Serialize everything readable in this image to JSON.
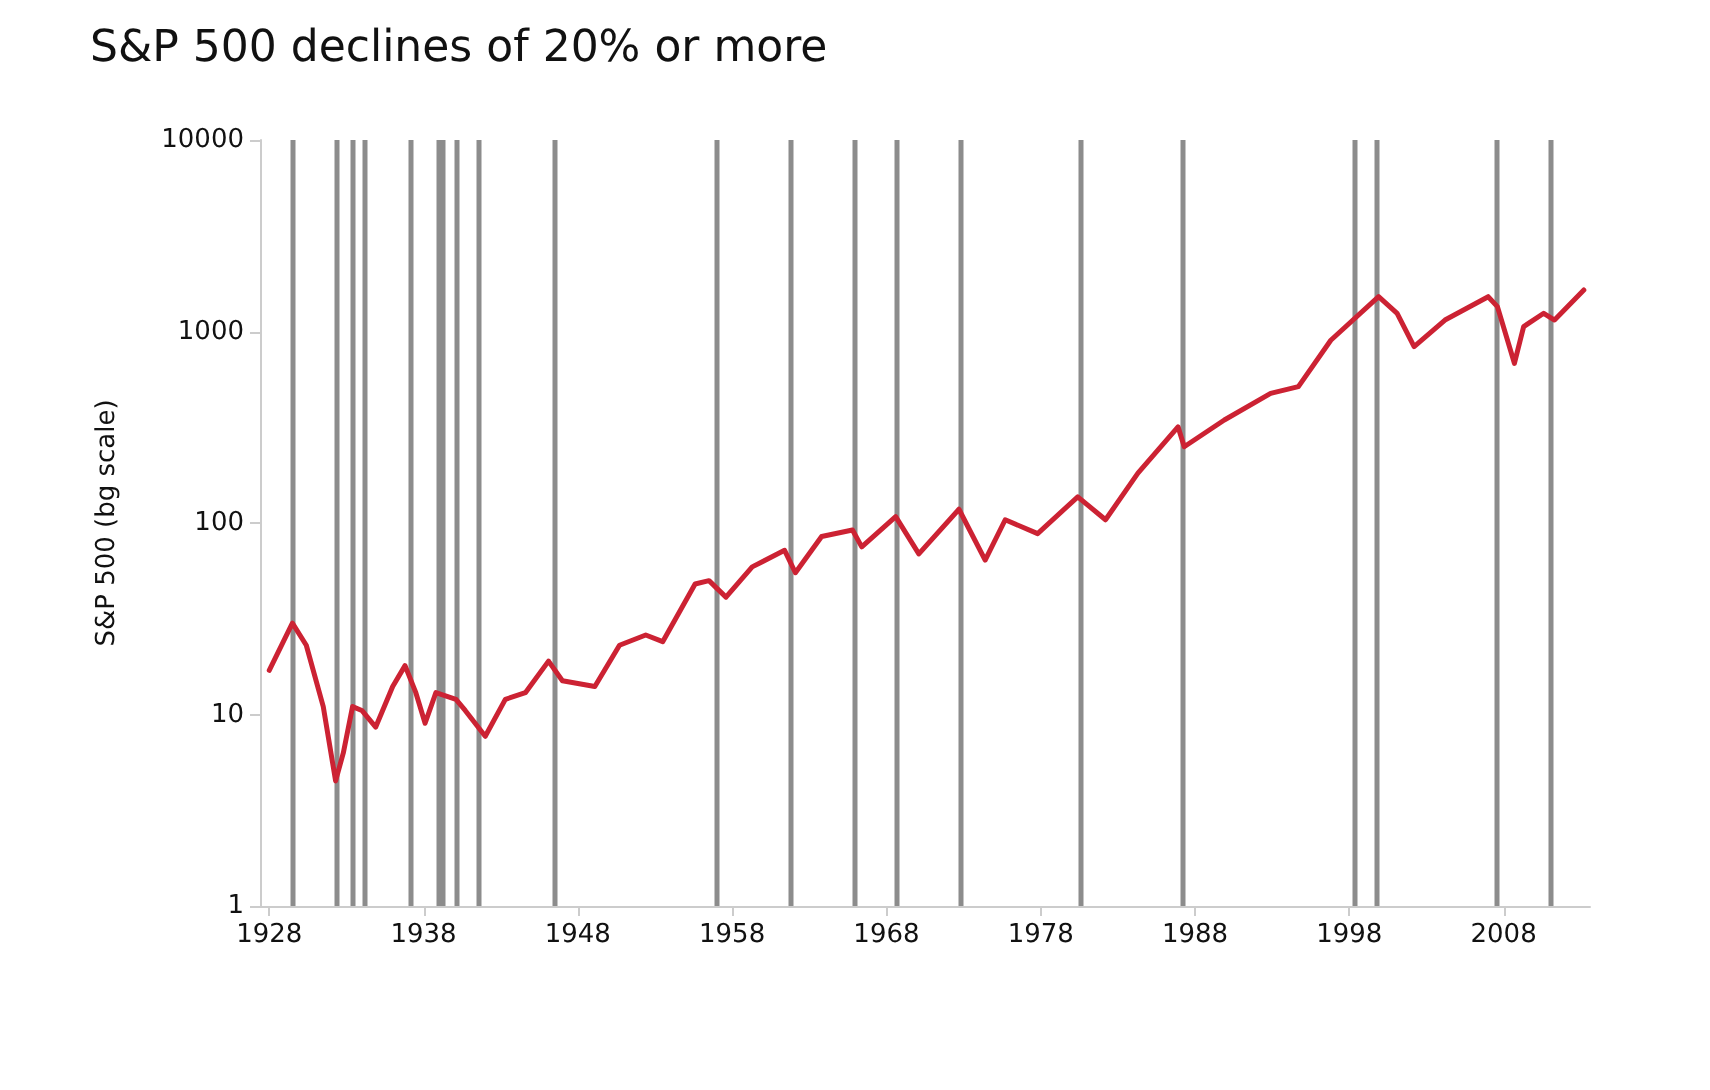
{
  "chart_data": {
    "type": "line",
    "title": "S&P 500 declines of 20% or more",
    "ylabel": "S&P 500 (bg scale)",
    "log": "y",
    "ylim": [
      1,
      10000
    ],
    "yticks": [
      1,
      10,
      100,
      1000,
      10000
    ],
    "xlim": [
      1927.4,
      2013.6
    ],
    "xticks": [
      1928,
      1938,
      1948,
      1958,
      1968,
      1978,
      1988,
      1998,
      2008
    ],
    "grid": false,
    "marker": "none",
    "line_style": "solid",
    "series": [
      {
        "color": "#cc2233",
        "x": [
          1928,
          1929.5,
          1930.4,
          1931.5,
          1932.3,
          1932.8,
          1933.4,
          1934.0,
          1934.9,
          1936.0,
          1936.8,
          1937.5,
          1938.1,
          1938.8,
          1940.1,
          1940.7,
          1942.0,
          1943.3,
          1944.6,
          1946.1,
          1947.0,
          1949.1,
          1950.7,
          1952.4,
          1953.5,
          1955.6,
          1956.5,
          1957.6,
          1959.3,
          1961.4,
          1962.1,
          1963.8,
          1965.8,
          1966.4,
          1968.6,
          1970.1,
          1972.7,
          1974.4,
          1975.7,
          1977.8,
          1980.4,
          1982.2,
          1984.3,
          1986.9,
          1987.3,
          1989.9,
          1992.9,
          1994.7,
          1996.8,
          1999.9,
          2001.1,
          2002.2,
          2004.2,
          2007.0,
          2007.6,
          2008.7,
          2009.3,
          2010.6,
          2011.3,
          2013.2
        ],
        "values": [
          17,
          30,
          23,
          11,
          4.5,
          6.3,
          11,
          10.5,
          8.6,
          14,
          18,
          13,
          9,
          13,
          12,
          10.5,
          7.7,
          12,
          13,
          19,
          15,
          14,
          23,
          26,
          24,
          48,
          50,
          41,
          59,
          72,
          55,
          85,
          92,
          75,
          108,
          69,
          118,
          64,
          104,
          88,
          137,
          104,
          182,
          318,
          250,
          345,
          475,
          515,
          900,
          1520,
          1245,
          834,
          1148,
          1520,
          1349,
          682,
          1061,
          1245,
          1148,
          1648
        ]
      }
    ],
    "ref_lines": [
      {
        "axis": "x",
        "value": 1929.5,
        "color": "#8c8c8c"
      },
      {
        "axis": "x",
        "value": 1932.4,
        "color": "#8c8c8c"
      },
      {
        "axis": "x",
        "value": 1933.4,
        "color": "#8c8c8c"
      },
      {
        "axis": "x",
        "value": 1934.2,
        "color": "#8c8c8c"
      },
      {
        "axis": "x",
        "value": 1937.1,
        "color": "#8c8c8c"
      },
      {
        "axis": "x",
        "value": 1939.0,
        "color": "#8c8c8c"
      },
      {
        "axis": "x",
        "value": 1939.2,
        "color": "#8c8c8c"
      },
      {
        "axis": "x",
        "value": 1940.2,
        "color": "#8c8c8c"
      },
      {
        "axis": "x",
        "value": 1941.6,
        "color": "#8c8c8c"
      },
      {
        "axis": "x",
        "value": 1946.5,
        "color": "#8c8c8c"
      },
      {
        "axis": "x",
        "value": 1957.0,
        "color": "#8c8c8c"
      },
      {
        "axis": "x",
        "value": 1961.8,
        "color": "#8c8c8c"
      },
      {
        "axis": "x",
        "value": 1965.9,
        "color": "#8c8c8c"
      },
      {
        "axis": "x",
        "value": 1968.7,
        "color": "#8c8c8c"
      },
      {
        "axis": "x",
        "value": 1972.8,
        "color": "#8c8c8c"
      },
      {
        "axis": "x",
        "value": 1980.6,
        "color": "#8c8c8c"
      },
      {
        "axis": "x",
        "value": 1987.2,
        "color": "#8c8c8c"
      },
      {
        "axis": "x",
        "value": 1998.3,
        "color": "#8c8c8c"
      },
      {
        "axis": "x",
        "value": 1999.8,
        "color": "#8c8c8c"
      },
      {
        "axis": "x",
        "value": 2007.5,
        "color": "#8c8c8c"
      },
      {
        "axis": "x",
        "value": 2011.1,
        "color": "#8c8c8c"
      }
    ]
  }
}
